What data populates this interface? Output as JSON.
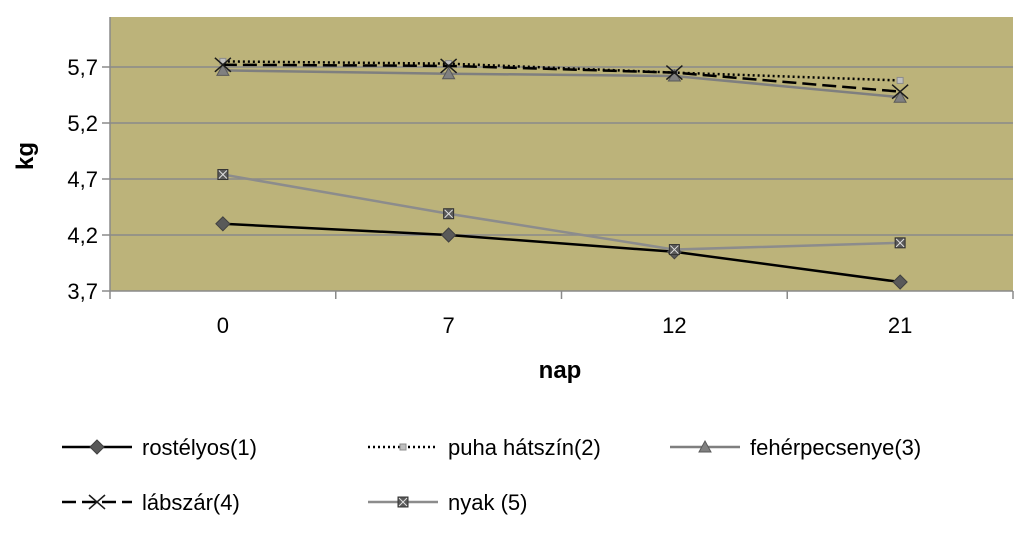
{
  "chart_data": {
    "type": "line",
    "xlabel": "nap",
    "ylabel": "kg",
    "categories": [
      "0",
      "7",
      "12",
      "21"
    ],
    "y_ticks": [
      "3,7",
      "4,2",
      "4,7",
      "5,2",
      "5,7"
    ],
    "ylim": [
      3.7,
      5.9
    ],
    "grid": true,
    "legend_position": "bottom",
    "plot_background": "#bcb37a",
    "series": [
      {
        "name": "rostélyos(1)",
        "values": [
          4.3,
          4.2,
          4.05,
          3.78
        ],
        "color": "#000000",
        "dash": "solid",
        "marker": "diamond"
      },
      {
        "name": "puha hátszín(2)",
        "values": [
          5.75,
          5.73,
          5.65,
          5.58
        ],
        "color": "#000000",
        "dash": "dotted",
        "marker": "square"
      },
      {
        "name": "fehérpecsenye(3)",
        "values": [
          5.67,
          5.64,
          5.62,
          5.43
        ],
        "color": "#7f7f7f",
        "dash": "solid",
        "marker": "triangle"
      },
      {
        "name": "lábszár(4)",
        "values": [
          5.72,
          5.71,
          5.65,
          5.48
        ],
        "color": "#000000",
        "dash": "longdash",
        "marker": "x"
      },
      {
        "name": "nyak (5)",
        "values": [
          4.74,
          4.39,
          4.07,
          4.13
        ],
        "color": "#8c8c8c",
        "dash": "solid",
        "marker": "boxstar"
      }
    ]
  }
}
